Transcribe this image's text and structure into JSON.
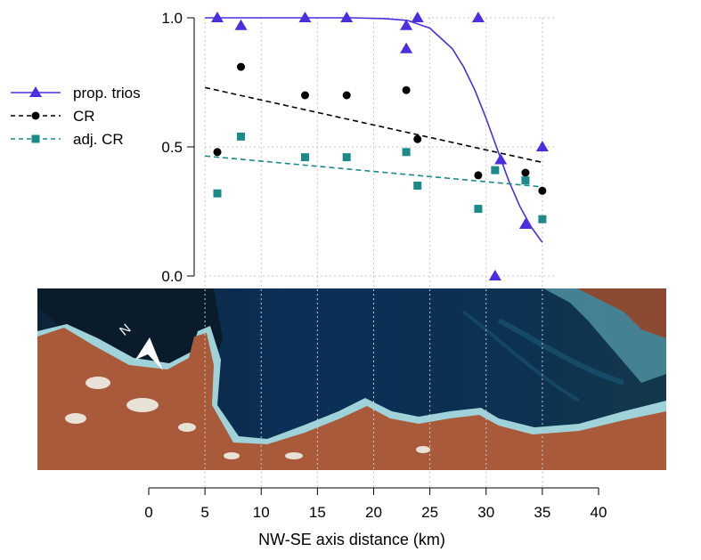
{
  "chart_data": {
    "type": "scatter",
    "title": "",
    "xlabel": "NW-SE axis distance (km)",
    "ylabel": "",
    "xlim": [
      0,
      40
    ],
    "ylim": [
      0,
      1
    ],
    "x_ticks": [
      "0",
      "5",
      "10",
      "15",
      "20",
      "25",
      "30",
      "35",
      "40"
    ],
    "y_ticks": [
      "0.0",
      "0.5",
      "1.0"
    ],
    "grid": true,
    "legend_position": "left",
    "legend": [
      "prop. trios",
      "CR",
      "adj. CR"
    ],
    "series": [
      {
        "name": "prop. trios",
        "marker": "triangle",
        "color": "#4b2ee0",
        "points": [
          [
            6.1,
            1.0
          ],
          [
            8.2,
            0.97
          ],
          [
            13.9,
            1.0
          ],
          [
            17.6,
            1.0
          ],
          [
            22.9,
            0.97
          ],
          [
            22.9,
            0.88
          ],
          [
            23.9,
            1.0
          ],
          [
            29.3,
            1.0
          ],
          [
            30.8,
            0.0
          ],
          [
            31.3,
            0.45
          ],
          [
            33.5,
            0.2
          ],
          [
            35.0,
            0.5
          ]
        ],
        "fit": [
          [
            5.0,
            1.0
          ],
          [
            18.0,
            1.0
          ],
          [
            21.0,
            0.997
          ],
          [
            23.0,
            0.99
          ],
          [
            25.0,
            0.96
          ],
          [
            27.0,
            0.88
          ],
          [
            28.0,
            0.81
          ],
          [
            29.0,
            0.72
          ],
          [
            30.0,
            0.61
          ],
          [
            31.0,
            0.49
          ],
          [
            32.0,
            0.37
          ],
          [
            33.0,
            0.27
          ],
          [
            34.0,
            0.19
          ],
          [
            35.0,
            0.13
          ]
        ]
      },
      {
        "name": "CR",
        "marker": "circle",
        "color": "#000000",
        "points": [
          [
            6.1,
            0.48
          ],
          [
            8.2,
            0.81
          ],
          [
            13.9,
            0.7
          ],
          [
            17.6,
            0.7
          ],
          [
            22.9,
            0.72
          ],
          [
            23.9,
            0.53
          ],
          [
            29.3,
            0.39
          ],
          [
            33.5,
            0.4
          ],
          [
            35.0,
            0.33
          ]
        ],
        "fit": [
          [
            5.0,
            0.73
          ],
          [
            35.0,
            0.44
          ]
        ]
      },
      {
        "name": "adj. CR",
        "marker": "square",
        "color": "#1b8a88",
        "points": [
          [
            6.1,
            0.32
          ],
          [
            8.2,
            0.54
          ],
          [
            13.9,
            0.46
          ],
          [
            17.6,
            0.46
          ],
          [
            22.9,
            0.48
          ],
          [
            23.9,
            0.35
          ],
          [
            29.3,
            0.26
          ],
          [
            30.8,
            0.41
          ],
          [
            33.5,
            0.37
          ],
          [
            35.0,
            0.22
          ]
        ],
        "fit": [
          [
            5.0,
            0.465
          ],
          [
            35.0,
            0.345
          ]
        ]
      }
    ]
  },
  "image_panel": {
    "description_icon": "north-arrow-icon",
    "compass_label": "N",
    "colors": {
      "sea_deep": "#0b2a4a",
      "land": "#a85a3a",
      "shallow": "#6fb6c8"
    }
  }
}
